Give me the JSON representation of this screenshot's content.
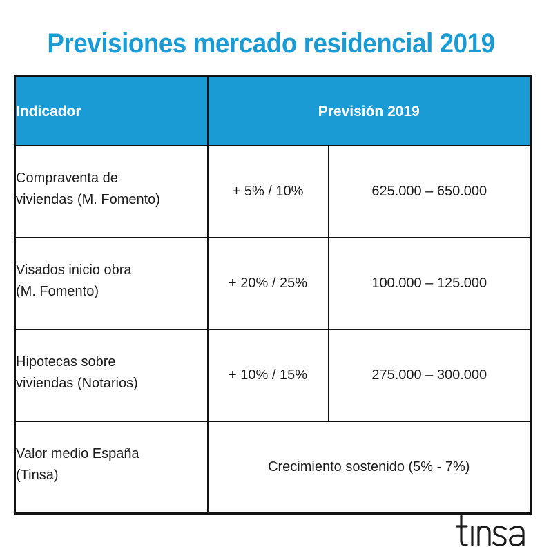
{
  "title": "Previsiones mercado residencial 2019",
  "table": {
    "header": {
      "indicator": "Indicador",
      "forecast": "Previsión 2019"
    },
    "rows": [
      {
        "indicator_line1": "Compraventa de",
        "indicator_line2": "viviendas (M. Fomento)",
        "percent": "+ 5% / 10%",
        "range": "625.000 – 650.000"
      },
      {
        "indicator_line1": "Visados inicio obra",
        "indicator_line2": "(M. Fomento)",
        "percent": "+ 20% / 25%",
        "range": "100.000 – 125.000"
      },
      {
        "indicator_line1": "Hipotecas  sobre",
        "indicator_line2": "viviendas (Notarios)",
        "percent": "+ 10% / 15%",
        "range": "275.000 – 300.000"
      },
      {
        "indicator_line1": "Valor medio España",
        "indicator_line2": "(Tinsa)",
        "merged": "Crecimiento sostenido (5% - 7%)"
      }
    ]
  },
  "logo": {
    "text": "tinsa",
    "color": "#1c1c1c"
  },
  "colors": {
    "accent": "#1a9bd4",
    "border": "#111111"
  }
}
